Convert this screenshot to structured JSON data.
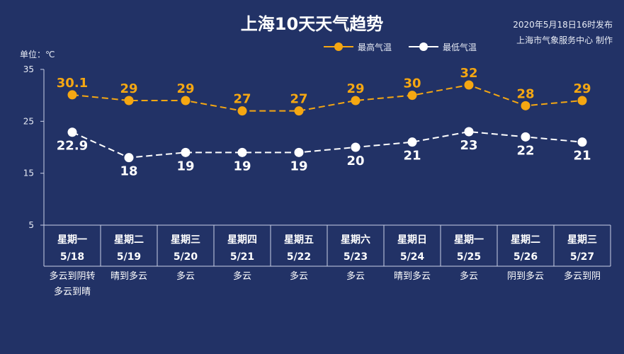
{
  "title": "上海10天天气趋势",
  "publisher": {
    "date_line": "2020年5月18日16时发布",
    "org_line": "上海市气象服务中心 制作"
  },
  "unit_label": "单位：℃",
  "colors": {
    "background": "#223266",
    "high": "#f5a712",
    "low": "#ffffff",
    "axis": "#c9d0e6"
  },
  "chart_data": {
    "type": "line",
    "title": "上海10天天气趋势",
    "ylabel": "单位：℃",
    "ylim": [
      5,
      35
    ],
    "yticks": [
      5,
      15,
      25,
      35
    ],
    "grid": false,
    "legend_position": "top-center",
    "categories": [
      {
        "weekday": "星期一",
        "date": "5/18",
        "weather": [
          "多云到阴转",
          "多云到晴"
        ]
      },
      {
        "weekday": "星期二",
        "date": "5/19",
        "weather": [
          "晴到多云"
        ]
      },
      {
        "weekday": "星期三",
        "date": "5/20",
        "weather": [
          "多云"
        ]
      },
      {
        "weekday": "星期四",
        "date": "5/21",
        "weather": [
          "多云"
        ]
      },
      {
        "weekday": "星期五",
        "date": "5/22",
        "weather": [
          "多云"
        ]
      },
      {
        "weekday": "星期六",
        "date": "5/23",
        "weather": [
          "多云"
        ]
      },
      {
        "weekday": "星期日",
        "date": "5/24",
        "weather": [
          "晴到多云"
        ]
      },
      {
        "weekday": "星期一",
        "date": "5/25",
        "weather": [
          "多云"
        ]
      },
      {
        "weekday": "星期二",
        "date": "5/26",
        "weather": [
          "阴到多云"
        ]
      },
      {
        "weekday": "星期三",
        "date": "5/27",
        "weather": [
          "多云到阴"
        ]
      }
    ],
    "series": [
      {
        "name": "最高气温",
        "values": [
          30.1,
          29,
          29,
          27,
          27,
          29,
          30,
          32,
          28,
          29
        ],
        "labels": [
          "30.1",
          "29",
          "29",
          "27",
          "27",
          "29",
          "30",
          "32",
          "28",
          "29"
        ]
      },
      {
        "name": "最低气温",
        "values": [
          22.9,
          18,
          19,
          19,
          19,
          20,
          21,
          23,
          22,
          21
        ],
        "labels": [
          "22.9",
          "18",
          "19",
          "19",
          "19",
          "20",
          "21",
          "23",
          "22",
          "21"
        ]
      }
    ]
  }
}
